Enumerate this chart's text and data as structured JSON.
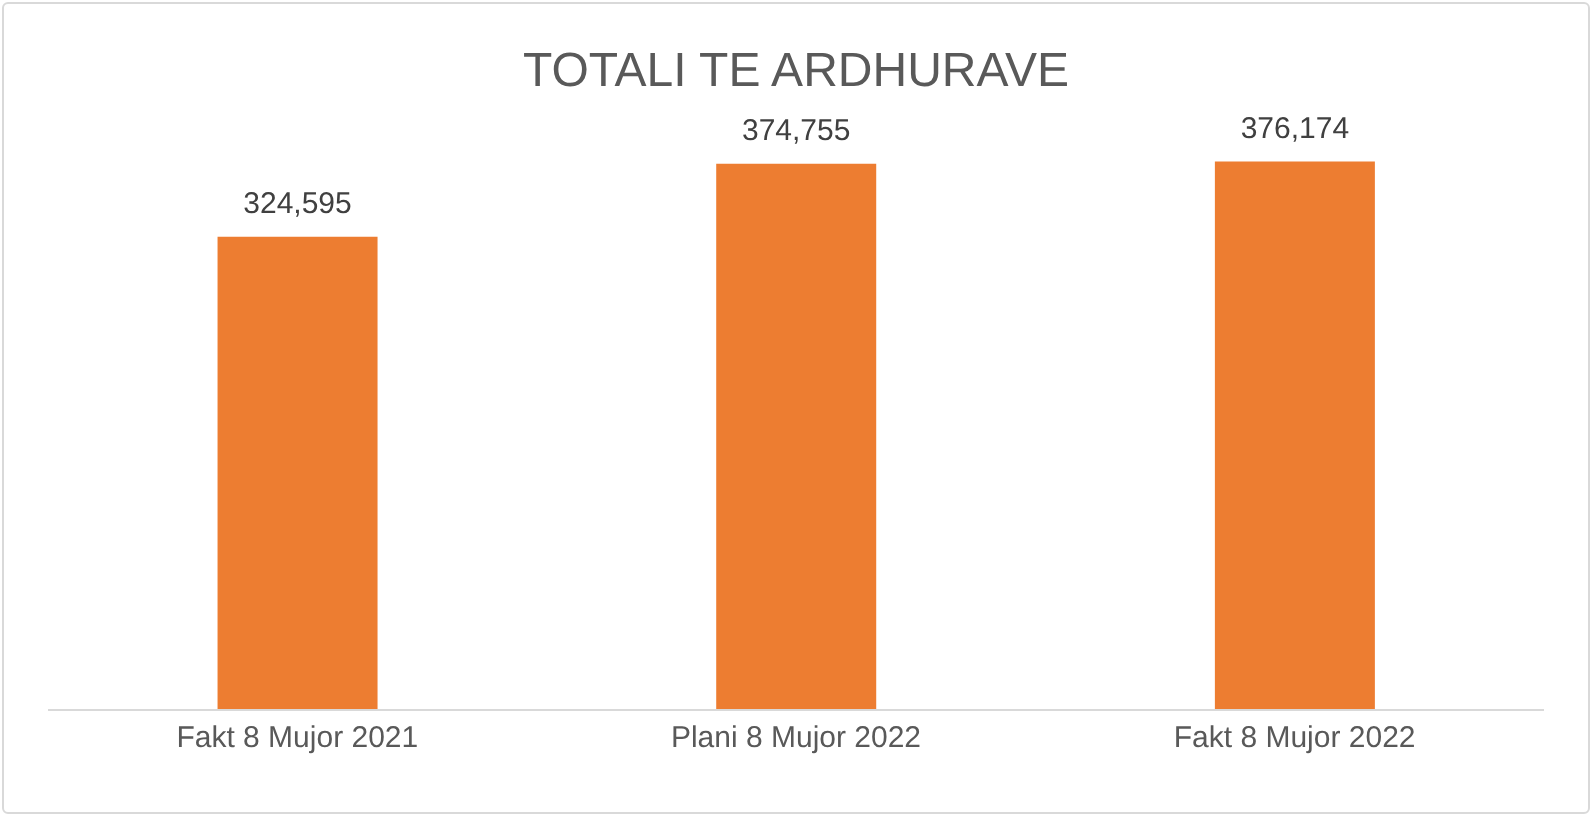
{
  "chart_data": {
    "type": "bar",
    "title": "TOTALI TE ARDHURAVE",
    "categories": [
      "Fakt 8 Mujor 2021",
      "Plani 8 Mujor 2022",
      "Fakt 8 Mujor 2022"
    ],
    "values": [
      324595,
      374755,
      376174
    ],
    "value_labels": [
      "324,595",
      "374,755",
      "376,174"
    ],
    "color": "#ed7d31",
    "tick_labels": "x"
  }
}
